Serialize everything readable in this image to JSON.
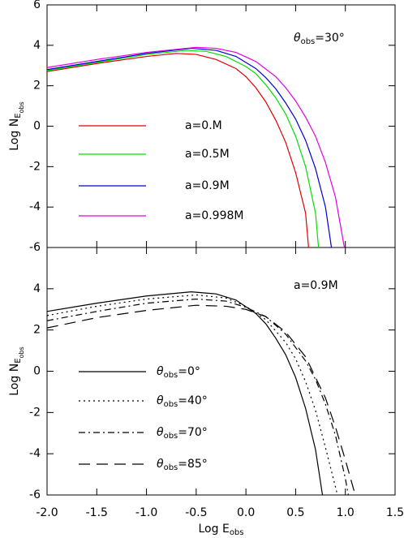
{
  "chart_data": [
    {
      "type": "line",
      "annotation": [
        {
          "italic": "θ"
        },
        {
          "sub": "obs"
        },
        {
          "text": "=30°"
        }
      ],
      "ylabel": [
        {
          "text": "Log N"
        },
        {
          "sub": "E"
        },
        {
          "subsub": "obs"
        }
      ],
      "xlim": [
        -2.0,
        1.5
      ],
      "ylim": [
        -6,
        6
      ],
      "xticks": [
        {
          "value": -2.0,
          "label": "-2.0"
        },
        {
          "value": -1.5,
          "label": "-1.5"
        },
        {
          "value": -1.0,
          "label": "-1.0"
        },
        {
          "value": -0.5,
          "label": "-0.5"
        },
        {
          "value": 0.0,
          "label": "0.0"
        },
        {
          "value": 0.5,
          "label": "0.5"
        },
        {
          "value": 1.0,
          "label": "1.0"
        },
        {
          "value": 1.5,
          "label": "1.5"
        }
      ],
      "show_xticklabels": false,
      "yticks": [
        -6,
        -4,
        -2,
        0,
        2,
        4,
        6
      ],
      "series": [
        {
          "name": [
            {
              "text": "a=0.M"
            }
          ],
          "color": "#e00000",
          "dash": "solid",
          "x": [
            -2,
            -1.5,
            -1,
            -0.7,
            -0.5,
            -0.3,
            -0.1,
            0,
            0.1,
            0.2,
            0.3,
            0.4,
            0.5,
            0.6,
            0.63
          ],
          "values": [
            2.7,
            3.1,
            3.45,
            3.6,
            3.55,
            3.3,
            2.85,
            2.45,
            1.9,
            1.2,
            0.3,
            -0.8,
            -2.3,
            -4.3,
            -6
          ]
        },
        {
          "name": [
            {
              "text": "a=0.5M"
            }
          ],
          "color": "#00e000",
          "dash": "solid",
          "x": [
            -2,
            -1.5,
            -1,
            -0.6,
            -0.4,
            -0.2,
            0,
            0.1,
            0.2,
            0.3,
            0.4,
            0.5,
            0.6,
            0.7,
            0.73
          ],
          "values": [
            2.75,
            3.15,
            3.55,
            3.75,
            3.7,
            3.45,
            2.95,
            2.6,
            2.05,
            1.4,
            0.6,
            -0.5,
            -2.0,
            -4.3,
            -6
          ]
        },
        {
          "name": [
            {
              "text": "a=0.9M"
            }
          ],
          "color": "#0000d0",
          "dash": "solid",
          "x": [
            -2,
            -1.5,
            -1,
            -0.55,
            -0.3,
            -0.1,
            0.1,
            0.2,
            0.3,
            0.4,
            0.5,
            0.6,
            0.7,
            0.8,
            0.86
          ],
          "values": [
            2.8,
            3.2,
            3.6,
            3.85,
            3.75,
            3.45,
            2.85,
            2.4,
            1.85,
            1.15,
            0.35,
            -0.7,
            -2.1,
            -4.0,
            -6
          ]
        },
        {
          "name": [
            {
              "text": "a=0.998M"
            }
          ],
          "color": "#e000e0",
          "dash": "solid",
          "x": [
            -2,
            -1.5,
            -1,
            -0.5,
            -0.3,
            -0.1,
            0.1,
            0.3,
            0.4,
            0.5,
            0.6,
            0.7,
            0.8,
            0.9,
            0.99
          ],
          "values": [
            2.9,
            3.3,
            3.65,
            3.9,
            3.85,
            3.65,
            3.2,
            2.45,
            1.9,
            1.25,
            0.45,
            -0.5,
            -1.8,
            -3.5,
            -6
          ]
        }
      ]
    },
    {
      "type": "line",
      "annotation": [
        {
          "text": "a=0.9M"
        }
      ],
      "ylabel": [
        {
          "text": "Log N"
        },
        {
          "sub": "E"
        },
        {
          "subsub": "obs"
        }
      ],
      "xlabel": [
        {
          "text": "Log E"
        },
        {
          "sub": "obs"
        }
      ],
      "xlim": [
        -2.0,
        1.5
      ],
      "ylim": [
        -6,
        6
      ],
      "xticks": [
        {
          "value": -2.0,
          "label": "-2.0"
        },
        {
          "value": -1.5,
          "label": "-1.5"
        },
        {
          "value": -1.0,
          "label": "-1.0"
        },
        {
          "value": -0.5,
          "label": "-0.5"
        },
        {
          "value": 0.0,
          "label": "0.0"
        },
        {
          "value": 0.5,
          "label": "0.5"
        },
        {
          "value": 1.0,
          "label": "1.0"
        },
        {
          "value": 1.5,
          "label": "1.5"
        }
      ],
      "show_xticklabels": true,
      "yticks": [
        -6,
        -4,
        -2,
        0,
        2,
        4
      ],
      "series": [
        {
          "name": [
            {
              "italic": "θ"
            },
            {
              "sub": "obs"
            },
            {
              "text": "=0°"
            }
          ],
          "color": "#000000",
          "dash": "solid",
          "x": [
            -2,
            -1.5,
            -1,
            -0.55,
            -0.3,
            -0.1,
            0.1,
            0.2,
            0.3,
            0.4,
            0.5,
            0.6,
            0.7,
            0.77
          ],
          "values": [
            2.9,
            3.3,
            3.65,
            3.85,
            3.75,
            3.45,
            2.8,
            2.3,
            1.6,
            0.8,
            -0.3,
            -1.8,
            -3.8,
            -6
          ]
        },
        {
          "name": [
            {
              "italic": "θ"
            },
            {
              "sub": "obs"
            },
            {
              "text": "=40°"
            }
          ],
          "color": "#000000",
          "dash": "dotted",
          "x": [
            -2,
            -1.5,
            -1,
            -0.5,
            -0.2,
            0,
            0.2,
            0.4,
            0.5,
            0.6,
            0.7,
            0.8,
            0.9,
            0.92
          ],
          "values": [
            2.7,
            3.15,
            3.5,
            3.7,
            3.55,
            3.15,
            2.5,
            1.4,
            0.6,
            -0.5,
            -1.9,
            -3.7,
            -5.6,
            -6
          ]
        },
        {
          "name": [
            {
              "italic": "θ"
            },
            {
              "sub": "obs"
            },
            {
              "text": "=70°"
            }
          ],
          "color": "#000000",
          "dash": "dashdot",
          "x": [
            -2,
            -1.5,
            -1,
            -0.5,
            -0.2,
            0,
            0.2,
            0.4,
            0.6,
            0.7,
            0.8,
            0.9,
            1.0,
            1.03
          ],
          "values": [
            2.45,
            2.9,
            3.3,
            3.5,
            3.4,
            3.1,
            2.65,
            1.8,
            0.5,
            -0.4,
            -1.6,
            -3.1,
            -5.2,
            -6
          ]
        },
        {
          "name": [
            {
              "italic": "θ"
            },
            {
              "sub": "obs"
            },
            {
              "text": "=85°"
            }
          ],
          "color": "#000000",
          "dash": "dashed",
          "x": [
            -2,
            -1.5,
            -1,
            -0.5,
            -0.2,
            0,
            0.2,
            0.4,
            0.6,
            0.8,
            0.9,
            1.0,
            1.07,
            1.1
          ],
          "values": [
            2.1,
            2.6,
            2.95,
            3.2,
            3.15,
            3.0,
            2.65,
            1.9,
            0.7,
            -1.3,
            -2.7,
            -4.3,
            -5.5,
            -6
          ]
        }
      ]
    }
  ]
}
